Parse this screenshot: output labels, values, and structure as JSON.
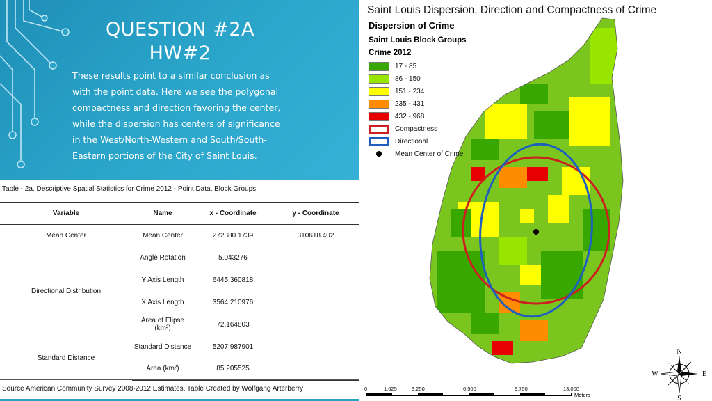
{
  "slide": {
    "title_line1": "QUESTION #2A",
    "title_line2": "HW#2",
    "body": "These results point to a similar conclusion as with the point data. Here we see the polygonal compactness and direction favoring the center, while the dispersion has centers of significance in the West/North-Western and South/South-Eastern portions of the City of Saint Louis."
  },
  "table": {
    "caption": "Table - 2a. Descriptive Spatial Statistics for Crime 2012 - Point Data, Block Groups",
    "headers": [
      "Variable",
      "Name",
      "x - Coordinate",
      "y - Coordinate"
    ],
    "rows": [
      {
        "variable": "Mean Center",
        "name": "Mean Center",
        "x": "272380.1739",
        "y": "310618.402"
      },
      {
        "variable": "Directional Distribution",
        "name": "Angle Rotation",
        "x": "5.043276",
        "y": ""
      },
      {
        "variable": "",
        "name": "Y Axis Length",
        "x": "6445.360818",
        "y": ""
      },
      {
        "variable": "",
        "name": "X Axis Length",
        "x": "3564.210976",
        "y": ""
      },
      {
        "variable": "",
        "name": "Area of Elipse (km²)",
        "x": "72.164803",
        "y": ""
      },
      {
        "variable": "Standard Distance",
        "name": "Standard Distance",
        "x": "5207.987901",
        "y": ""
      },
      {
        "variable": "",
        "name": "Area (km²)",
        "x": "85.205525",
        "y": ""
      }
    ],
    "source": "Source American Community Survey 2008-2012 Estimates. Table Created by Wolfgang Arterberry"
  },
  "map": {
    "title": "Saint Louis Dispersion, Direction and Compactness of Crime",
    "legend_title": "Dispersion of Crime",
    "layer_name": "Saint Louis Block Groups",
    "field_name": "Crime 2012",
    "classes": [
      {
        "label": "17 - 85",
        "color": "#38a800"
      },
      {
        "label": "86 - 150",
        "color": "#98e600"
      },
      {
        "label": "151 - 234",
        "color": "#ffff00"
      },
      {
        "label": "235 - 431",
        "color": "#ff8c00"
      },
      {
        "label": "432 - 968",
        "color": "#e60000"
      }
    ],
    "compactness_label": "Compactness",
    "compactness_color": "#cc1f1f",
    "directional_label": "Directional",
    "directional_color": "#1f5fbf",
    "mean_center_label": "Mean Center of Crime",
    "scale_labels": [
      "0",
      "1,625",
      "3,250",
      "6,500",
      "9,750",
      "13,000"
    ],
    "scale_unit": "Meters",
    "compass": {
      "n": "N",
      "s": "S",
      "e": "E",
      "w": "W"
    }
  }
}
